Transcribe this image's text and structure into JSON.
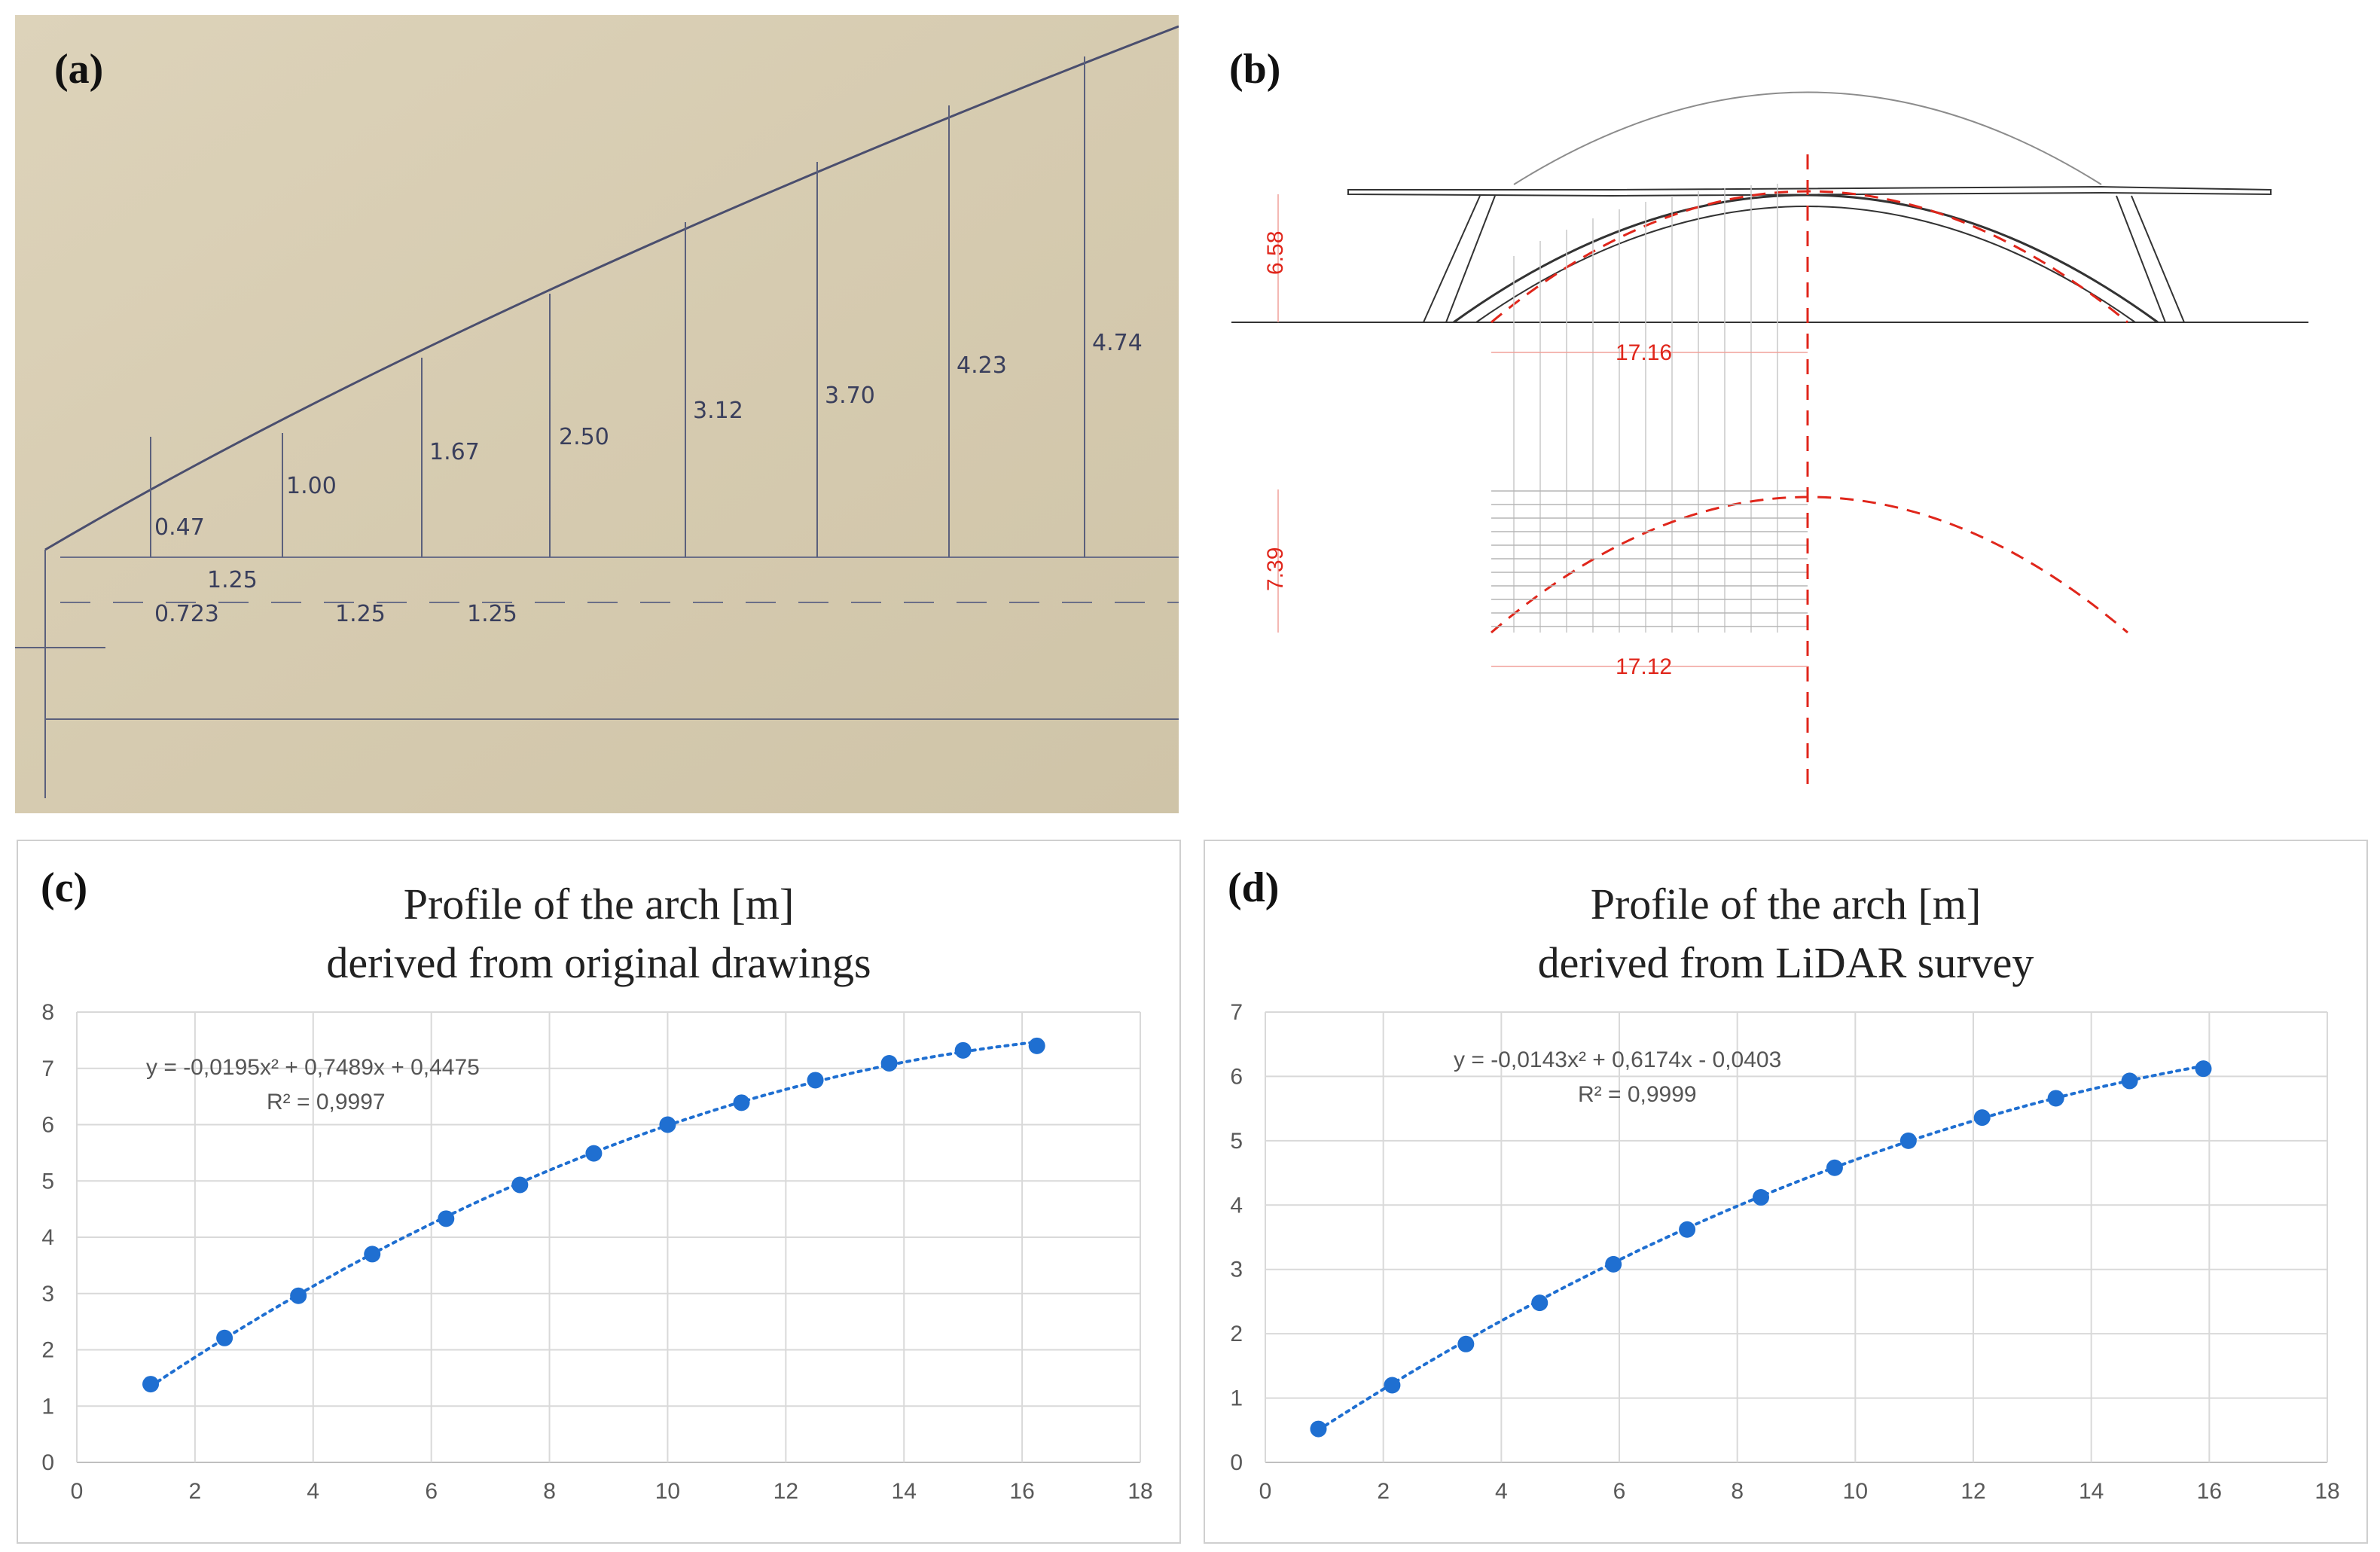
{
  "panel_labels": {
    "a": "(a)",
    "b": "(b)",
    "c": "(c)",
    "d": "(d)"
  },
  "drawing_a": {
    "heights": [
      "0.47",
      "1.00",
      "1.67",
      "2.50",
      "3.12",
      "3.70",
      "4.23",
      "4.74"
    ],
    "spacings": [
      "1.25",
      "0.723",
      "1.25",
      "1.25"
    ]
  },
  "section_b": {
    "dims": [
      "6.58",
      "17.16",
      "7.39",
      "17.12"
    ]
  },
  "colors": {
    "marker": "#1f6fd1",
    "red": "#e0261b",
    "grid": "#d9d9d9"
  },
  "chart_data": [
    {
      "type": "scatter",
      "title": "Profile of the arch [m]",
      "subtitle": "derived from original drawings",
      "x": [
        1.25,
        2.5,
        3.75,
        5.0,
        6.25,
        7.5,
        8.75,
        10.0,
        11.25,
        12.5,
        13.75,
        15.0,
        16.25
      ],
      "y": [
        1.39,
        2.21,
        2.96,
        3.7,
        4.33,
        4.93,
        5.49,
        6.0,
        6.39,
        6.79,
        7.09,
        7.32,
        7.4
      ],
      "trendline": {
        "type": "polynomial",
        "a": -0.0195,
        "b": 0.7489,
        "c": 0.4475
      },
      "equation": "y = -0,0195x² + 0,7489x + 0,4475",
      "r2": "R² = 0,9997",
      "xlim": [
        0,
        18
      ],
      "ylim": [
        0,
        8
      ],
      "xticks": [
        "0",
        "2",
        "4",
        "6",
        "8",
        "10",
        "12",
        "14",
        "16",
        "18"
      ],
      "yticks": [
        "0",
        "1",
        "2",
        "3",
        "4",
        "5",
        "6",
        "7",
        "8"
      ],
      "grid": true
    },
    {
      "type": "scatter",
      "title": "Profile of the arch [m]",
      "subtitle": "derived from LiDAR survey",
      "x": [
        0.9,
        2.15,
        3.4,
        4.65,
        5.9,
        7.15,
        8.4,
        9.65,
        10.9,
        12.15,
        13.4,
        14.65,
        15.9
      ],
      "y": [
        0.52,
        1.2,
        1.84,
        2.48,
        3.08,
        3.62,
        4.12,
        4.58,
        5.0,
        5.36,
        5.66,
        5.93,
        6.12
      ],
      "trendline": {
        "type": "polynomial",
        "a": -0.0143,
        "b": 0.6174,
        "c": -0.0403
      },
      "equation": "y = -0,0143x² + 0,6174x - 0,0403",
      "r2": "R² = 0,9999",
      "xlim": [
        0,
        18
      ],
      "ylim": [
        0,
        7
      ],
      "xticks": [
        "0",
        "2",
        "4",
        "6",
        "8",
        "10",
        "12",
        "14",
        "16",
        "18"
      ],
      "yticks": [
        "0",
        "1",
        "2",
        "3",
        "4",
        "5",
        "6",
        "7"
      ],
      "grid": true
    }
  ]
}
